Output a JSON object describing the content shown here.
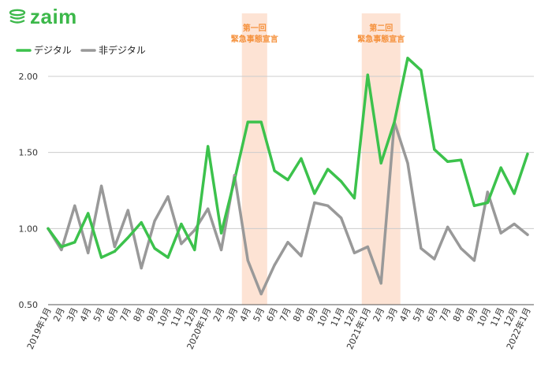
{
  "brand": {
    "name": "zaim",
    "color": "#3cb84a"
  },
  "chart_data": {
    "type": "line",
    "title": "",
    "xlabel": "",
    "ylabel": "",
    "ylim": [
      0.5,
      2.15
    ],
    "yticks": [
      "0.50",
      "1.00",
      "1.50",
      "2.00"
    ],
    "ytick_values": [
      0.5,
      1.0,
      1.5,
      2.0
    ],
    "grid": true,
    "legend_position": "top-left",
    "categories": [
      "2019年1月",
      "2月",
      "3月",
      "4月",
      "5月",
      "6月",
      "7月",
      "8月",
      "9月",
      "10月",
      "11月",
      "12月",
      "2020年1月",
      "2月",
      "3月",
      "4月",
      "5月",
      "6月",
      "7月",
      "8月",
      "9月",
      "10月",
      "11月",
      "12月",
      "2021年1月",
      "2月",
      "3月",
      "4月",
      "5月",
      "6月",
      "7月",
      "8月",
      "9月",
      "10月",
      "11月",
      "12月",
      "2022年1月"
    ],
    "series": [
      {
        "name": "デジタル",
        "color": "#3cc24c",
        "values": [
          1.0,
          0.88,
          0.91,
          1.1,
          0.81,
          0.85,
          0.94,
          1.04,
          0.87,
          0.81,
          1.03,
          0.86,
          1.54,
          0.97,
          1.32,
          1.7,
          1.7,
          1.38,
          1.32,
          1.46,
          1.23,
          1.39,
          1.31,
          1.2,
          2.01,
          1.43,
          1.7,
          2.12,
          2.04,
          1.52,
          1.44,
          1.45,
          1.15,
          1.17,
          1.4,
          1.23,
          1.49
        ]
      },
      {
        "name": "非デジタル",
        "color": "#999999",
        "values": [
          1.0,
          0.86,
          1.15,
          0.84,
          1.28,
          0.88,
          1.12,
          0.74,
          1.05,
          1.21,
          0.9,
          0.99,
          1.13,
          0.86,
          1.35,
          0.79,
          0.57,
          0.76,
          0.91,
          0.82,
          1.17,
          1.15,
          1.07,
          0.84,
          0.88,
          0.64,
          1.7,
          1.43,
          0.87,
          0.8,
          1.01,
          0.87,
          0.79,
          1.24,
          0.97,
          1.03,
          0.96
        ]
      }
    ],
    "annotations": [
      {
        "line1": "第一回",
        "line2": "緊急事態宣言",
        "start_index": 15,
        "end_index": 16,
        "color": "#f5923e",
        "band_color": "#fde3d4"
      },
      {
        "line1": "第二回",
        "line2": "緊急事態宣言",
        "start_index": 24,
        "end_index": 26,
        "color": "#f5923e",
        "band_color": "#fde3d4"
      }
    ]
  }
}
